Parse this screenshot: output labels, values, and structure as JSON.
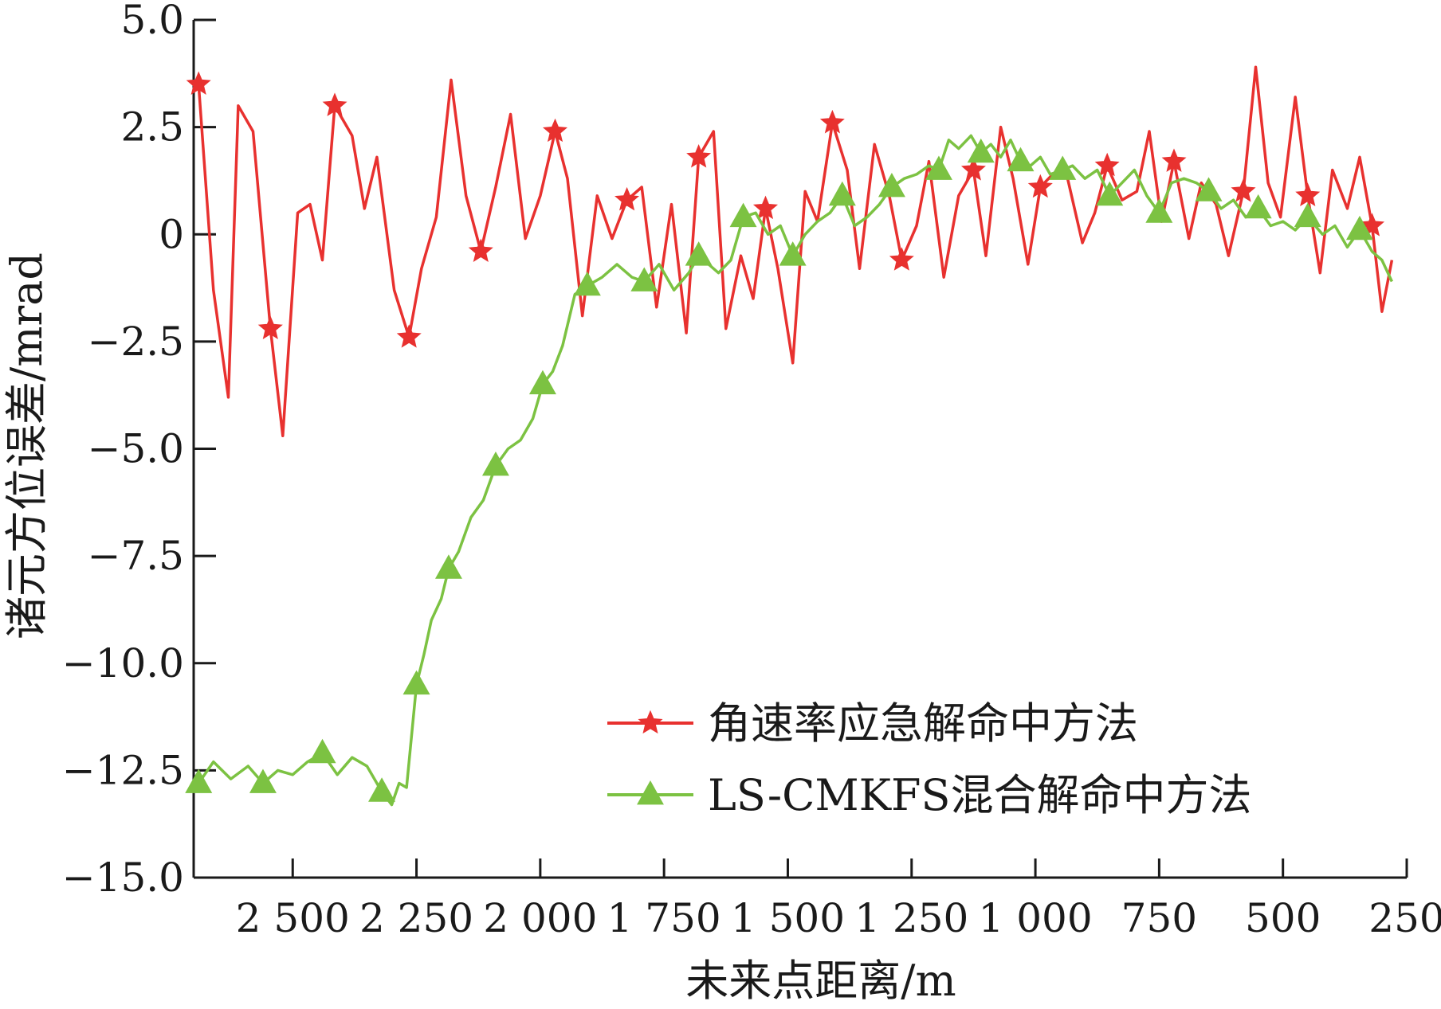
{
  "chart_data": {
    "type": "line",
    "xlabel": "未来点距离/m",
    "ylabel": "诸元方位误差/mrad",
    "x_reversed": true,
    "xlim": [
      2700,
      250
    ],
    "ylim": [
      -15.0,
      5.0
    ],
    "x_ticks": [
      2500,
      2250,
      2000,
      1750,
      1500,
      1250,
      1000,
      750,
      500,
      250
    ],
    "x_tick_labels": [
      "2 500",
      "2 250",
      "2 000",
      "1 750",
      "1 500",
      "1 250",
      "1 000",
      "750",
      "500",
      "250"
    ],
    "y_ticks": [
      5.0,
      2.5,
      0,
      -2.5,
      -5.0,
      -7.5,
      -10.0,
      -12.5,
      -15.0
    ],
    "y_tick_labels": [
      "5.0",
      "2.5",
      "0",
      "−2.5",
      "−5.0",
      "−7.5",
      "−10.0",
      "−12.5",
      "−15.0"
    ],
    "grid": false,
    "legend_position": "lower-right",
    "series": [
      {
        "name": "角速率应急解命中方法",
        "color": "#e8312f",
        "marker": "star",
        "x": [
          2690,
          2660,
          2630,
          2610,
          2580,
          2545,
          2520,
          2490,
          2465,
          2440,
          2415,
          2380,
          2355,
          2330,
          2295,
          2265,
          2240,
          2210,
          2180,
          2150,
          2120,
          2090,
          2060,
          2030,
          2000,
          1970,
          1945,
          1915,
          1885,
          1855,
          1825,
          1795,
          1765,
          1735,
          1705,
          1680,
          1650,
          1625,
          1595,
          1570,
          1545,
          1520,
          1490,
          1465,
          1440,
          1410,
          1380,
          1355,
          1325,
          1295,
          1270,
          1240,
          1215,
          1185,
          1155,
          1125,
          1100,
          1070,
          1045,
          1015,
          990,
          965,
          935,
          905,
          880,
          855,
          825,
          795,
          770,
          745,
          720,
          690,
          665,
          635,
          610,
          580,
          555,
          530,
          505,
          475,
          450,
          425,
          400,
          370,
          345,
          320,
          300,
          280
        ],
        "y": [
          3.5,
          -1.3,
          -3.8,
          3.0,
          2.4,
          -2.2,
          -4.7,
          0.5,
          0.7,
          -0.6,
          3.0,
          2.3,
          0.6,
          1.8,
          -1.3,
          -2.4,
          -0.8,
          0.4,
          3.6,
          0.9,
          -0.4,
          1.1,
          2.8,
          -0.1,
          0.9,
          2.4,
          1.3,
          -1.9,
          0.9,
          -0.1,
          0.8,
          1.1,
          -1.7,
          0.7,
          -2.3,
          1.8,
          2.4,
          -2.2,
          -0.5,
          -1.5,
          0.6,
          -0.8,
          -3.0,
          1.0,
          0.3,
          2.6,
          1.5,
          -0.8,
          2.1,
          0.9,
          -0.6,
          0.2,
          1.7,
          -1.0,
          0.9,
          1.5,
          -0.5,
          2.5,
          1.3,
          -0.7,
          1.1,
          1.4,
          1.3,
          -0.2,
          0.5,
          1.6,
          0.8,
          1.0,
          2.4,
          0.3,
          1.7,
          -0.1,
          1.2,
          0.7,
          -0.5,
          1.0,
          3.9,
          1.2,
          0.4,
          3.2,
          0.9,
          -0.9,
          1.5,
          0.6,
          1.8,
          0.2,
          -1.8,
          -0.6
        ]
      },
      {
        "name": "LS-CMKFS混合解命中方法",
        "color": "#7cc242",
        "marker": "triangle",
        "x": [
          2690,
          2660,
          2625,
          2590,
          2560,
          2530,
          2500,
          2470,
          2440,
          2410,
          2380,
          2350,
          2320,
          2300,
          2285,
          2270,
          2250,
          2235,
          2220,
          2200,
          2185,
          2165,
          2140,
          2115,
          2090,
          2065,
          2040,
          2015,
          1995,
          1975,
          1955,
          1930,
          1905,
          1875,
          1845,
          1815,
          1790,
          1760,
          1730,
          1700,
          1680,
          1660,
          1640,
          1615,
          1590,
          1565,
          1540,
          1515,
          1490,
          1465,
          1440,
          1415,
          1390,
          1365,
          1340,
          1315,
          1290,
          1265,
          1240,
          1215,
          1195,
          1175,
          1155,
          1130,
          1110,
          1090,
          1070,
          1050,
          1030,
          1010,
          990,
          970,
          945,
          925,
          900,
          875,
          850,
          825,
          800,
          775,
          750,
          725,
          700,
          675,
          650,
          625,
          600,
          575,
          550,
          525,
          500,
          475,
          450,
          420,
          395,
          370,
          345,
          320,
          300,
          280
        ],
        "y": [
          -12.8,
          -12.3,
          -12.7,
          -12.4,
          -12.8,
          -12.5,
          -12.6,
          -12.3,
          -12.1,
          -12.6,
          -12.2,
          -12.4,
          -13.0,
          -13.3,
          -12.8,
          -12.9,
          -10.5,
          -9.8,
          -9.0,
          -8.5,
          -7.8,
          -7.4,
          -6.6,
          -6.2,
          -5.4,
          -5.0,
          -4.8,
          -4.3,
          -3.5,
          -3.2,
          -2.6,
          -1.4,
          -1.2,
          -1.0,
          -0.7,
          -1.0,
          -1.1,
          -0.7,
          -1.3,
          -0.9,
          -0.5,
          -0.7,
          -0.9,
          -0.6,
          0.4,
          0.5,
          0.0,
          0.2,
          -0.5,
          0.0,
          0.3,
          0.5,
          0.9,
          0.2,
          0.4,
          0.7,
          1.1,
          1.3,
          1.4,
          1.6,
          1.5,
          2.2,
          2.0,
          2.3,
          1.9,
          2.1,
          1.8,
          2.2,
          1.7,
          1.6,
          1.8,
          1.4,
          1.5,
          1.6,
          1.3,
          1.5,
          0.9,
          1.2,
          1.5,
          0.9,
          0.5,
          1.2,
          1.3,
          1.2,
          1.0,
          0.6,
          0.8,
          0.4,
          0.6,
          0.2,
          0.3,
          0.1,
          0.4,
          0.0,
          0.2,
          -0.3,
          0.1,
          -0.4,
          -0.6,
          -1.1
        ]
      }
    ]
  }
}
